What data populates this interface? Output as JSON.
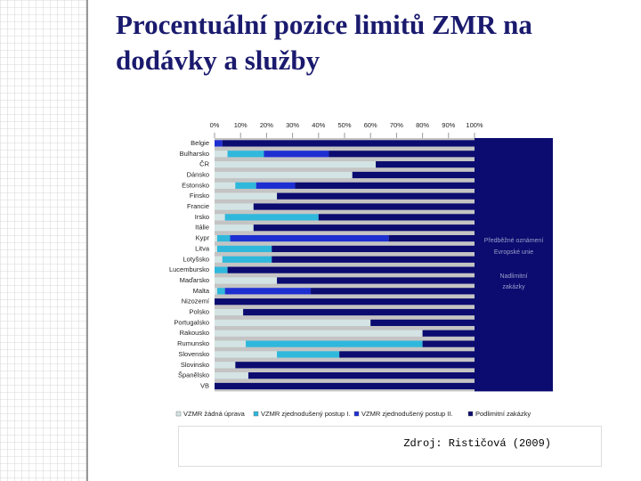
{
  "slide": {
    "title": "Procentuální pozice limitů ZMR na dodávky a služby",
    "source": "Zdroj: Rističová (2009)"
  },
  "chart_data": {
    "type": "bar",
    "orientation": "horizontal",
    "stacked": true,
    "categories": [
      "Belgie",
      "Bulharsko",
      "ČR",
      "Dánsko",
      "Estonsko",
      "Finsko",
      "Francie",
      "Irsko",
      "Itálie",
      "Kypr",
      "Litva",
      "Lotyšsko",
      "Lucembursko",
      "Maďarsko",
      "Malta",
      "Nizozemí",
      "Polsko",
      "Portugalsko",
      "Rakousko",
      "Rumunsko",
      "Slovensko",
      "Slovinsko",
      "Španělsko",
      "VB"
    ],
    "series": [
      {
        "name": "VZMR žádná úprava",
        "color": "#d4e4e4",
        "values": [
          0,
          5,
          62,
          53,
          8,
          24,
          15,
          4,
          15,
          1,
          1,
          3,
          0,
          24,
          1,
          0,
          11,
          60,
          80,
          12,
          24,
          8,
          13,
          0
        ]
      },
      {
        "name": "VZMR zjednodušený postup I.",
        "color": "#2fb8dc",
        "values": [
          0,
          14,
          0,
          0,
          8,
          0,
          0,
          36,
          0,
          5,
          21,
          19,
          5,
          0,
          3,
          0,
          0,
          0,
          0,
          68,
          24,
          0,
          0,
          0
        ]
      },
      {
        "name": "VZMR zjednodušený postup II.",
        "color": "#1e2fd2",
        "values": [
          3,
          25,
          0,
          0,
          15,
          0,
          0,
          0,
          0,
          61,
          0,
          0,
          0,
          0,
          33,
          0,
          0,
          0,
          0,
          0,
          0,
          0,
          0,
          0
        ]
      },
      {
        "name": "Podlimitní zakázky",
        "color": "#0b0b70",
        "values": [
          97,
          56,
          38,
          47,
          69,
          76,
          85,
          60,
          85,
          33,
          78,
          78,
          95,
          76,
          63,
          100,
          89,
          40,
          20,
          20,
          52,
          92,
          87,
          100
        ]
      }
    ],
    "xlim": [
      0,
      100
    ],
    "xticks": [
      {
        "value": 0,
        "label": "0%"
      },
      {
        "value": 10,
        "label": "10%"
      },
      {
        "value": 20,
        "label": "20%"
      },
      {
        "value": 30,
        "label": "30%"
      },
      {
        "value": 40,
        "label": "40%"
      },
      {
        "value": 50,
        "label": "50%"
      },
      {
        "value": 60,
        "label": "60%"
      },
      {
        "value": 70,
        "label": "70%"
      },
      {
        "value": 80,
        "label": "80%"
      },
      {
        "value": 90,
        "label": "90%"
      },
      {
        "value": 100,
        "label": "100%"
      }
    ],
    "annotations": [
      "Předběžné oznámení",
      "Evropské unie",
      "Nadlimitní",
      "zakázky"
    ],
    "legend": "bottom"
  }
}
